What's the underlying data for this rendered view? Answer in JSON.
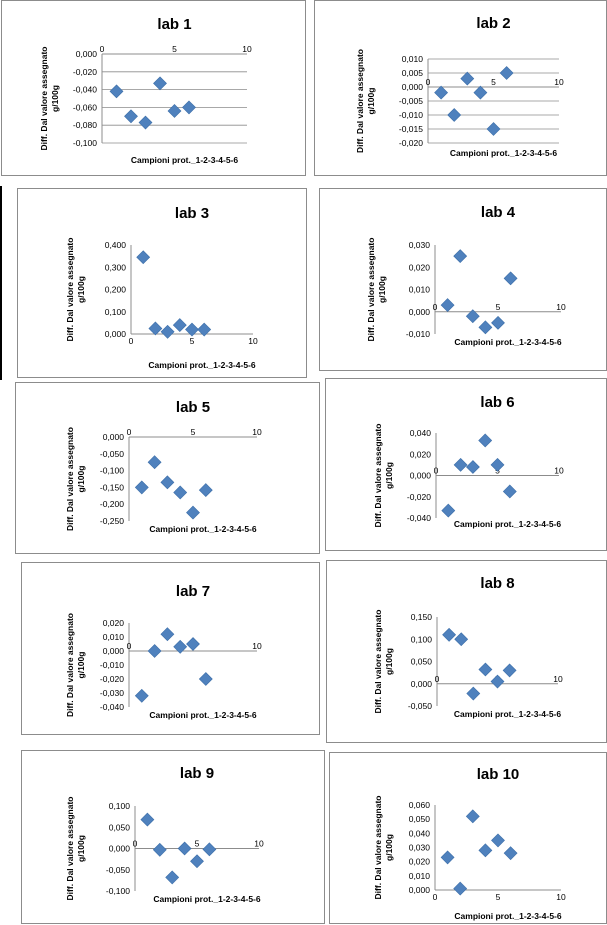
{
  "colors": {
    "marker": "#4f81bd",
    "marker_edge": "#3c6ea8",
    "grid": "#8c8c8c",
    "axis": "#8c8c8c",
    "text": "#000000"
  },
  "chart_data": [
    {
      "type": "scatter",
      "title": "lab 1",
      "xlabel": "Campioni prot._1-2-3-4-5-6",
      "ylabel": [
        "Diff. Dal valore assegnato",
        "g/100g"
      ],
      "xlim": [
        0,
        10
      ],
      "xticks": [
        0,
        5,
        10
      ],
      "x_tick_labels": [
        "0",
        "5",
        "10"
      ],
      "ylim": [
        -0.1,
        0.0
      ],
      "yticks": [
        -0.1,
        -0.08,
        -0.06,
        -0.04,
        -0.02,
        0.0
      ],
      "y_tick_labels": [
        "-0,100",
        "-0,080",
        "-0,060",
        "-0,040",
        "-0,020",
        "0,000"
      ],
      "grid": true,
      "points": [
        {
          "x": 1,
          "y": -0.042
        },
        {
          "x": 2,
          "y": -0.07
        },
        {
          "x": 3,
          "y": -0.077
        },
        {
          "x": 4,
          "y": -0.033
        },
        {
          "x": 5,
          "y": -0.064
        },
        {
          "x": 6,
          "y": -0.06
        }
      ]
    },
    {
      "type": "scatter",
      "title": "lab 2",
      "xlabel": "Campioni prot._1-2-3-4-5-6",
      "ylabel": [
        "Diff. Dal valore assegnato",
        "g/100g"
      ],
      "xlim": [
        0,
        10
      ],
      "xticks": [
        0,
        5,
        10
      ],
      "x_tick_labels": [
        "0",
        "5",
        "10"
      ],
      "ylim": [
        -0.02,
        0.01
      ],
      "yticks": [
        -0.02,
        -0.015,
        -0.01,
        -0.005,
        0.0,
        0.005,
        0.01
      ],
      "y_tick_labels": [
        "-0,020",
        "-0,015",
        "-0,010",
        "-0,005",
        "0,000",
        "0,005",
        "0,010"
      ],
      "grid": true,
      "points": [
        {
          "x": 1,
          "y": -0.002
        },
        {
          "x": 2,
          "y": -0.01
        },
        {
          "x": 3,
          "y": 0.003
        },
        {
          "x": 4,
          "y": -0.002
        },
        {
          "x": 5,
          "y": -0.015
        },
        {
          "x": 6,
          "y": 0.005
        }
      ]
    },
    {
      "type": "scatter",
      "title": "lab 3",
      "xlabel": "Campioni prot._1-2-3-4-5-6",
      "ylabel": [
        "Diff. Dal valore assegnato",
        "g/100g"
      ],
      "xlim": [
        0,
        10
      ],
      "xticks": [
        0,
        5,
        10
      ],
      "x_tick_labels": [
        "0",
        "5",
        "10"
      ],
      "ylim": [
        0.0,
        0.4
      ],
      "yticks": [
        0.0,
        0.1,
        0.2,
        0.3,
        0.4
      ],
      "y_tick_labels": [
        "0,000",
        "0,100",
        "0,200",
        "0,300",
        "0,400"
      ],
      "grid": false,
      "points": [
        {
          "x": 1,
          "y": 0.345
        },
        {
          "x": 2,
          "y": 0.025
        },
        {
          "x": 3,
          "y": 0.01
        },
        {
          "x": 4,
          "y": 0.04
        },
        {
          "x": 5,
          "y": 0.02
        },
        {
          "x": 6,
          "y": 0.02
        }
      ]
    },
    {
      "type": "scatter",
      "title": "lab 4",
      "xlabel": "Campioni prot._1-2-3-4-5-6",
      "ylabel": [
        "Diff. Dal valore assegnato",
        "g/100g"
      ],
      "xlim": [
        0,
        10
      ],
      "xticks": [
        0,
        5,
        10
      ],
      "x_tick_labels": [
        "0",
        "5",
        "10"
      ],
      "ylim": [
        -0.01,
        0.03
      ],
      "yticks": [
        -0.01,
        0.0,
        0.01,
        0.02,
        0.03
      ],
      "y_tick_labels": [
        "-0,010",
        "0,000",
        "0,010",
        "0,020",
        "0,030"
      ],
      "grid": false,
      "points": [
        {
          "x": 1,
          "y": 0.003
        },
        {
          "x": 2,
          "y": 0.025
        },
        {
          "x": 3,
          "y": -0.002
        },
        {
          "x": 4,
          "y": -0.007
        },
        {
          "x": 5,
          "y": -0.005
        },
        {
          "x": 6,
          "y": 0.015
        }
      ]
    },
    {
      "type": "scatter",
      "title": "lab 5",
      "xlabel": "Campioni prot._1-2-3-4-5-6",
      "ylabel": [
        "Diff. Dal valore assegnato",
        "g/100g"
      ],
      "xlim": [
        0,
        10
      ],
      "xticks": [
        0,
        5,
        10
      ],
      "x_tick_labels": [
        "0",
        "5",
        "10"
      ],
      "ylim": [
        -0.25,
        0.0
      ],
      "yticks": [
        -0.25,
        -0.2,
        -0.15,
        -0.1,
        -0.05,
        0.0
      ],
      "y_tick_labels": [
        "-0,250",
        "-0,200",
        "-0,150",
        "-0,100",
        "-0,050",
        "0,000"
      ],
      "grid": false,
      "points": [
        {
          "x": 1,
          "y": -0.15
        },
        {
          "x": 2,
          "y": -0.075
        },
        {
          "x": 3,
          "y": -0.135
        },
        {
          "x": 4,
          "y": -0.165
        },
        {
          "x": 5,
          "y": -0.225
        },
        {
          "x": 6,
          "y": -0.158
        }
      ]
    },
    {
      "type": "scatter",
      "title": "lab 6",
      "xlabel": "Campioni prot._1-2-3-4-5-6",
      "ylabel": [
        "Diff. Dal valore assegnato",
        "g/100g"
      ],
      "xlim": [
        0,
        10
      ],
      "xticks": [
        0,
        5,
        10
      ],
      "x_tick_labels": [
        "0",
        "5",
        "10"
      ],
      "ylim": [
        -0.04,
        0.04
      ],
      "yticks": [
        -0.04,
        -0.02,
        0.0,
        0.02,
        0.04
      ],
      "y_tick_labels": [
        "-0,040",
        "-0,020",
        "0,000",
        "0,020",
        "0,040"
      ],
      "grid": false,
      "points": [
        {
          "x": 1,
          "y": -0.033
        },
        {
          "x": 2,
          "y": 0.01
        },
        {
          "x": 3,
          "y": 0.008
        },
        {
          "x": 4,
          "y": 0.033
        },
        {
          "x": 5,
          "y": 0.01
        },
        {
          "x": 6,
          "y": -0.015
        }
      ]
    },
    {
      "type": "scatter",
      "title": "lab 7",
      "xlabel": "Campioni prot._1-2-3-4-5-6",
      "ylabel": [
        "Diff. Dal valore assegnato",
        "g/100g"
      ],
      "xlim": [
        0,
        10
      ],
      "xticks": [
        0,
        5,
        10
      ],
      "x_tick_labels": [
        "0",
        "5",
        "10"
      ],
      "ylim": [
        -0.04,
        0.02
      ],
      "yticks": [
        -0.04,
        -0.03,
        -0.02,
        -0.01,
        0.0,
        0.01,
        0.02
      ],
      "y_tick_labels": [
        "-0,040",
        "-0,030",
        "-0,020",
        "-0,010",
        "0,000",
        "0,010",
        "0,020"
      ],
      "grid": false,
      "points": [
        {
          "x": 1,
          "y": -0.032
        },
        {
          "x": 2,
          "y": 0.0
        },
        {
          "x": 3,
          "y": 0.012
        },
        {
          "x": 4,
          "y": 0.003
        },
        {
          "x": 5,
          "y": 0.005
        },
        {
          "x": 6,
          "y": -0.02
        }
      ]
    },
    {
      "type": "scatter",
      "title": "lab 8",
      "xlabel": "Campioni prot._1-2-3-4-5-6",
      "ylabel": [
        "Diff. Dal valore assegnato",
        "g/100g"
      ],
      "xlim": [
        0,
        10
      ],
      "xticks": [
        0,
        5,
        10
      ],
      "x_tick_labels": [
        "0",
        "5",
        "10"
      ],
      "ylim": [
        -0.05,
        0.15
      ],
      "yticks": [
        -0.05,
        0.0,
        0.05,
        0.1,
        0.15
      ],
      "y_tick_labels": [
        "-0,050",
        "0,000",
        "0,050",
        "0,100",
        "0,150"
      ],
      "grid": false,
      "points": [
        {
          "x": 1,
          "y": 0.11
        },
        {
          "x": 2,
          "y": 0.1
        },
        {
          "x": 3,
          "y": -0.022
        },
        {
          "x": 4,
          "y": 0.032
        },
        {
          "x": 5,
          "y": 0.005
        },
        {
          "x": 6,
          "y": 0.03
        }
      ]
    },
    {
      "type": "scatter",
      "title": "lab 9",
      "xlabel": "Campioni prot._1-2-3-4-5-6",
      "ylabel": [
        "Diff. Dal valore assegnato",
        "g/100g"
      ],
      "xlim": [
        0,
        10
      ],
      "xticks": [
        0,
        5,
        10
      ],
      "x_tick_labels": [
        "0",
        "5",
        "10"
      ],
      "ylim": [
        -0.1,
        0.1
      ],
      "yticks": [
        -0.1,
        -0.05,
        0.0,
        0.05,
        0.1
      ],
      "y_tick_labels": [
        "-0,100",
        "-0,050",
        "0,000",
        "0,050",
        "0,100"
      ],
      "grid": false,
      "points": [
        {
          "x": 1,
          "y": 0.068
        },
        {
          "x": 2,
          "y": -0.003
        },
        {
          "x": 3,
          "y": -0.068
        },
        {
          "x": 4,
          "y": 0.0
        },
        {
          "x": 5,
          "y": -0.03
        },
        {
          "x": 6,
          "y": -0.002
        }
      ]
    },
    {
      "type": "scatter",
      "title": "lab 10",
      "xlabel": "Campioni prot._1-2-3-4-5-6",
      "ylabel": [
        "Diff. Dal valore assegnato",
        "g/100g"
      ],
      "xlim": [
        0,
        10
      ],
      "xticks": [
        0,
        5,
        10
      ],
      "x_tick_labels": [
        "0",
        "5",
        "10"
      ],
      "ylim": [
        0.0,
        0.06
      ],
      "yticks": [
        0.0,
        0.01,
        0.02,
        0.03,
        0.04,
        0.05,
        0.06
      ],
      "y_tick_labels": [
        "0,000",
        "0,010",
        "0,020",
        "0,030",
        "0,040",
        "0,050",
        "0,060"
      ],
      "grid": false,
      "points": [
        {
          "x": 1,
          "y": 0.023
        },
        {
          "x": 2,
          "y": 0.001
        },
        {
          "x": 3,
          "y": 0.052
        },
        {
          "x": 4,
          "y": 0.028
        },
        {
          "x": 5,
          "y": 0.035
        },
        {
          "x": 6,
          "y": 0.026
        }
      ]
    }
  ]
}
